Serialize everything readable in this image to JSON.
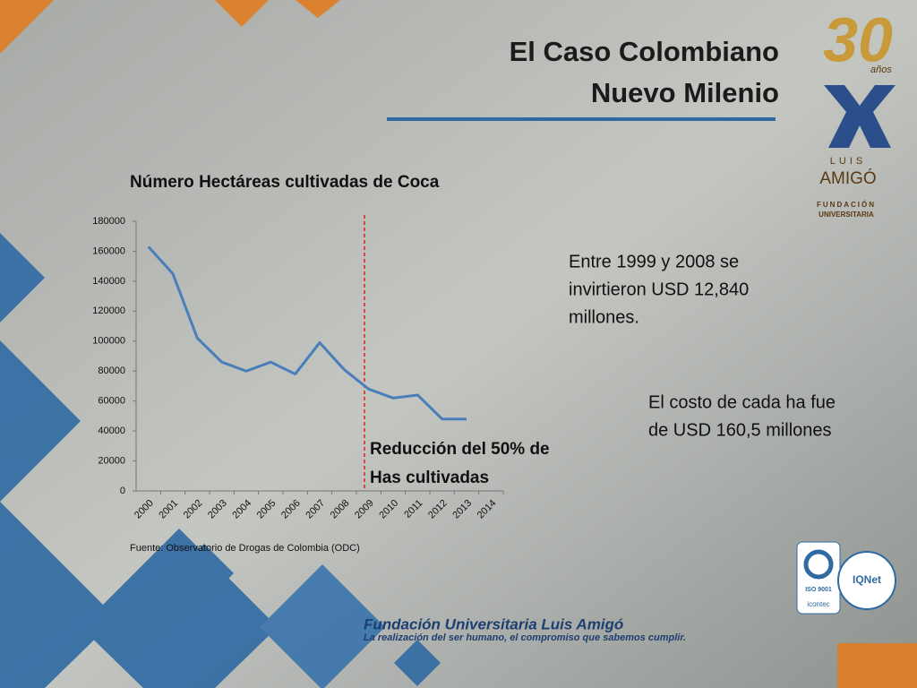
{
  "slide_title": [
    "El Caso Colombiano",
    "Nuevo Milenio"
  ],
  "logo": {
    "years": "30",
    "years_word": "años",
    "name_top": "LUIS",
    "name": "AMIGÓ",
    "org": [
      "FUNDACIÓN",
      "UNIVERSITARIA"
    ]
  },
  "chart_data": {
    "type": "line",
    "title": "Número Hectáreas cultivadas de Coca",
    "categories": [
      "2000",
      "2001",
      "2002",
      "2003",
      "2004",
      "2005",
      "2006",
      "2007",
      "2008",
      "2009",
      "2010",
      "2011",
      "2012",
      "2013",
      "2014"
    ],
    "values": [
      163000,
      145000,
      102000,
      86000,
      80000,
      86000,
      78000,
      99000,
      81000,
      68000,
      62000,
      64000,
      48000,
      48000,
      null
    ],
    "color": "#4a7ebb",
    "ylim": [
      0,
      180000
    ],
    "yticks": [
      0,
      20000,
      40000,
      60000,
      80000,
      100000,
      120000,
      140000,
      160000,
      180000
    ],
    "annotation": [
      "Reducción del 50% de",
      "Has cultivadas"
    ],
    "source": "Fuente: Observatorio de Drogas de Colombia (ODC)"
  },
  "notes": [
    [
      "Entre 1999 y 2008 se",
      "invirtieron USD 12,840",
      "millones."
    ],
    [
      "El costo de cada ha fue",
      "de USD 160,5 millones"
    ]
  ],
  "certifications": [
    "ISO 9001",
    "icontec",
    "IQNet"
  ],
  "footer": {
    "name": "Fundación Universitaria Luis Amigó",
    "motto": "La realización del ser humano, el compromiso que sabemos cumplir."
  }
}
